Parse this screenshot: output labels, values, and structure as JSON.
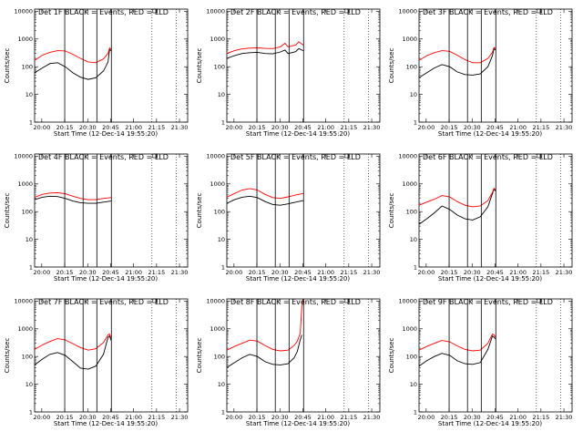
{
  "chart_data": {
    "type": "line",
    "xlabel": "Start Time (12-Dec-14 19:55:20)",
    "ylabel": "Counts/sec",
    "x_tick_labels": [
      "20:00",
      "20:15",
      "20:30",
      "20:45",
      "21:00",
      "21:15",
      "21:30"
    ],
    "x_ticks_min": [
      4.67,
      19.67,
      34.67,
      49.67,
      64.67,
      79.67,
      94.67
    ],
    "xlim_min": [
      0,
      100
    ],
    "y_tick_labels": [
      "1",
      "10",
      "100",
      "1000",
      "10000"
    ],
    "y_ticks": [
      1,
      10,
      100,
      1000,
      10000
    ],
    "ylim": [
      1,
      12000
    ],
    "y_scale": "log",
    "solid_vlines_min": [
      19.67,
      31.67,
      40.67,
      50.17
    ],
    "dotted_vlines_min": [
      76.67,
      92.67
    ],
    "colors": {
      "events": "#000000",
      "lld": "#ff0000"
    },
    "panels": [
      {
        "title": "Det 1F BLACK = Events, RED = LLD",
        "lld": [
          [
            0,
            170
          ],
          [
            5,
            260
          ],
          [
            10,
            330
          ],
          [
            15,
            380
          ],
          [
            20,
            370
          ],
          [
            25,
            280
          ],
          [
            30,
            200
          ],
          [
            35,
            150
          ],
          [
            40,
            140
          ],
          [
            45,
            190
          ],
          [
            48,
            300
          ],
          [
            49,
            480
          ],
          [
            50,
            420
          ]
        ],
        "events": [
          [
            0,
            60
          ],
          [
            5,
            90
          ],
          [
            10,
            130
          ],
          [
            15,
            140
          ],
          [
            20,
            100
          ],
          [
            25,
            60
          ],
          [
            30,
            42
          ],
          [
            35,
            35
          ],
          [
            40,
            40
          ],
          [
            45,
            70
          ],
          [
            48,
            150
          ],
          [
            49,
            420
          ],
          [
            50,
            380
          ]
        ]
      },
      {
        "title": "Det 2F BLACK = Events, RED = LLD",
        "lld": [
          [
            0,
            300
          ],
          [
            5,
            380
          ],
          [
            10,
            440
          ],
          [
            15,
            470
          ],
          [
            20,
            480
          ],
          [
            25,
            460
          ],
          [
            30,
            450
          ],
          [
            35,
            520
          ],
          [
            38,
            700
          ],
          [
            40,
            520
          ],
          [
            45,
            600
          ],
          [
            47,
            800
          ],
          [
            50,
            600
          ]
        ],
        "events": [
          [
            0,
            200
          ],
          [
            5,
            250
          ],
          [
            10,
            300
          ],
          [
            15,
            320
          ],
          [
            20,
            330
          ],
          [
            25,
            300
          ],
          [
            30,
            290
          ],
          [
            35,
            340
          ],
          [
            38,
            400
          ],
          [
            40,
            300
          ],
          [
            45,
            350
          ],
          [
            47,
            450
          ],
          [
            50,
            380
          ]
        ]
      },
      {
        "title": "Det 3F BLACK = Events, RED = LLD",
        "lld": [
          [
            0,
            170
          ],
          [
            5,
            250
          ],
          [
            10,
            320
          ],
          [
            15,
            380
          ],
          [
            20,
            360
          ],
          [
            25,
            260
          ],
          [
            30,
            180
          ],
          [
            35,
            140
          ],
          [
            40,
            140
          ],
          [
            45,
            200
          ],
          [
            48,
            330
          ],
          [
            49,
            500
          ],
          [
            50,
            450
          ]
        ],
        "events": [
          [
            0,
            40
          ],
          [
            5,
            60
          ],
          [
            10,
            90
          ],
          [
            15,
            120
          ],
          [
            20,
            100
          ],
          [
            25,
            65
          ],
          [
            30,
            52
          ],
          [
            35,
            50
          ],
          [
            40,
            55
          ],
          [
            45,
            100
          ],
          [
            48,
            250
          ],
          [
            49,
            450
          ],
          [
            50,
            400
          ]
        ]
      },
      {
        "title": "Det 4F BLACK = Events, RED = LLD",
        "lld": [
          [
            0,
            330
          ],
          [
            5,
            420
          ],
          [
            10,
            470
          ],
          [
            15,
            480
          ],
          [
            20,
            440
          ],
          [
            25,
            360
          ],
          [
            30,
            300
          ],
          [
            35,
            270
          ],
          [
            40,
            270
          ],
          [
            45,
            300
          ],
          [
            50,
            320
          ]
        ],
        "events": [
          [
            0,
            270
          ],
          [
            5,
            330
          ],
          [
            10,
            360
          ],
          [
            15,
            350
          ],
          [
            20,
            300
          ],
          [
            25,
            240
          ],
          [
            30,
            210
          ],
          [
            35,
            200
          ],
          [
            40,
            200
          ],
          [
            45,
            220
          ],
          [
            50,
            240
          ]
        ]
      },
      {
        "title": "Det 5F BLACK = Events, RED = LLD",
        "lld": [
          [
            0,
            330
          ],
          [
            5,
            450
          ],
          [
            10,
            600
          ],
          [
            15,
            680
          ],
          [
            20,
            600
          ],
          [
            25,
            420
          ],
          [
            30,
            320
          ],
          [
            35,
            300
          ],
          [
            40,
            340
          ],
          [
            45,
            400
          ],
          [
            50,
            450
          ]
        ],
        "events": [
          [
            0,
            200
          ],
          [
            5,
            270
          ],
          [
            10,
            330
          ],
          [
            15,
            360
          ],
          [
            20,
            320
          ],
          [
            25,
            230
          ],
          [
            30,
            180
          ],
          [
            35,
            170
          ],
          [
            40,
            190
          ],
          [
            45,
            220
          ],
          [
            50,
            250
          ]
        ]
      },
      {
        "title": "Det 6F BLACK = Events, RED = LLD",
        "lld": [
          [
            0,
            170
          ],
          [
            5,
            220
          ],
          [
            10,
            280
          ],
          [
            15,
            380
          ],
          [
            20,
            340
          ],
          [
            25,
            230
          ],
          [
            30,
            170
          ],
          [
            35,
            150
          ],
          [
            40,
            160
          ],
          [
            45,
            250
          ],
          [
            48,
            500
          ],
          [
            49,
            700
          ],
          [
            50,
            600
          ]
        ],
        "events": [
          [
            0,
            35
          ],
          [
            5,
            55
          ],
          [
            10,
            90
          ],
          [
            15,
            160
          ],
          [
            20,
            120
          ],
          [
            25,
            75
          ],
          [
            30,
            55
          ],
          [
            35,
            50
          ],
          [
            40,
            65
          ],
          [
            45,
            150
          ],
          [
            48,
            450
          ],
          [
            49,
            650
          ],
          [
            50,
            550
          ]
        ]
      },
      {
        "title": "Det 7F BLACK = Events, RED = LLD",
        "lld": [
          [
            0,
            180
          ],
          [
            5,
            260
          ],
          [
            10,
            350
          ],
          [
            15,
            440
          ],
          [
            20,
            400
          ],
          [
            25,
            290
          ],
          [
            30,
            210
          ],
          [
            35,
            170
          ],
          [
            40,
            190
          ],
          [
            45,
            320
          ],
          [
            48,
            600
          ],
          [
            49,
            650
          ],
          [
            50,
            450
          ]
        ],
        "events": [
          [
            0,
            50
          ],
          [
            5,
            80
          ],
          [
            10,
            120
          ],
          [
            15,
            140
          ],
          [
            20,
            110
          ],
          [
            25,
            65
          ],
          [
            30,
            38
          ],
          [
            35,
            35
          ],
          [
            40,
            45
          ],
          [
            45,
            120
          ],
          [
            48,
            500
          ],
          [
            49,
            550
          ],
          [
            50,
            380
          ]
        ]
      },
      {
        "title": "Det 8F BLACK = Events, RED = LLD",
        "lld": [
          [
            0,
            170
          ],
          [
            5,
            230
          ],
          [
            10,
            300
          ],
          [
            15,
            390
          ],
          [
            20,
            360
          ],
          [
            25,
            250
          ],
          [
            30,
            180
          ],
          [
            35,
            160
          ],
          [
            40,
            170
          ],
          [
            44,
            250
          ],
          [
            46,
            350
          ],
          [
            48,
            700
          ],
          [
            49,
            6000
          ],
          [
            50,
            12000
          ]
        ],
        "events": [
          [
            0,
            40
          ],
          [
            5,
            60
          ],
          [
            10,
            90
          ],
          [
            15,
            120
          ],
          [
            20,
            100
          ],
          [
            25,
            65
          ],
          [
            30,
            52
          ],
          [
            35,
            50
          ],
          [
            40,
            55
          ],
          [
            44,
            90
          ],
          [
            46,
            150
          ],
          [
            48,
            400
          ],
          [
            49,
            600
          ]
        ]
      },
      {
        "title": "Det 9F BLACK = Events, RED = LLD",
        "lld": [
          [
            0,
            170
          ],
          [
            5,
            230
          ],
          [
            10,
            300
          ],
          [
            15,
            380
          ],
          [
            20,
            340
          ],
          [
            25,
            240
          ],
          [
            30,
            180
          ],
          [
            35,
            160
          ],
          [
            40,
            170
          ],
          [
            45,
            300
          ],
          [
            48,
            650
          ],
          [
            49,
            600
          ],
          [
            50,
            500
          ]
        ],
        "events": [
          [
            0,
            45
          ],
          [
            5,
            70
          ],
          [
            10,
            100
          ],
          [
            15,
            130
          ],
          [
            20,
            110
          ],
          [
            25,
            70
          ],
          [
            30,
            55
          ],
          [
            35,
            52
          ],
          [
            40,
            60
          ],
          [
            45,
            180
          ],
          [
            48,
            550
          ],
          [
            49,
            500
          ],
          [
            50,
            430
          ]
        ]
      }
    ]
  }
}
